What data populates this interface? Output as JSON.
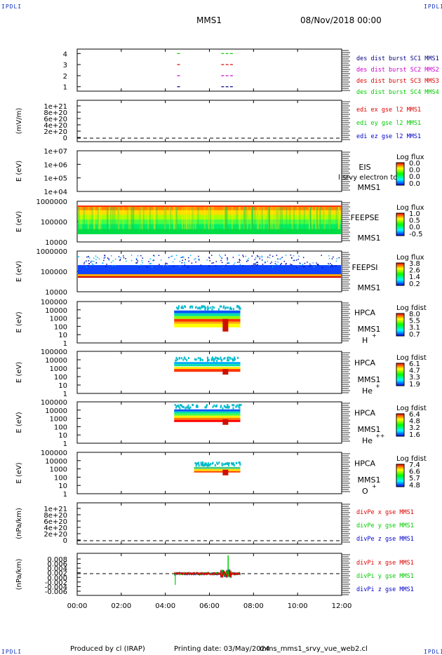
{
  "header": {
    "corner_label": "IPDLI",
    "spacecraft": "MMS1",
    "date": "08/Nov/2018 00:00"
  },
  "footer": {
    "produced_by": "Produced by  cl (IRAP)",
    "printing_date": "Printing date: 03/May/2024",
    "script_name": "mms_mms1_srvy_vue_web2.cl"
  },
  "colors": {
    "red": "#dd0000",
    "green": "#00cc00",
    "blue": "#0000cc",
    "magenta": "#cc00cc",
    "navy": "#000080"
  },
  "chart_data": [
    {
      "type": "scatter",
      "ylabel": "",
      "yticks": [
        "4",
        "3",
        "2",
        "1"
      ],
      "ylim": [
        0.6,
        4.4
      ],
      "legend": [
        {
          "name": "des dist burst SC1 MMS1",
          "color": "navy"
        },
        {
          "name": "des dist burst SC2 MMS2",
          "color": "magenta"
        },
        {
          "name": "des dist burst SC3 MMS3",
          "color": "red"
        },
        {
          "name": "des dist burst SC4 MMS4",
          "color": "green"
        }
      ],
      "segments": [
        {
          "sc": 4,
          "color": "green",
          "x": [
            4.6,
            6.6,
            6.8,
            7.0
          ]
        },
        {
          "sc": 3,
          "color": "red",
          "x": [
            4.6,
            6.6,
            6.8,
            7.0
          ]
        },
        {
          "sc": 2,
          "color": "magenta",
          "x": [
            4.6,
            6.6,
            6.8,
            7.0
          ]
        },
        {
          "sc": 1,
          "color": "navy",
          "x": [
            4.6,
            6.6,
            6.8,
            7.0
          ]
        }
      ]
    },
    {
      "type": "line",
      "ylabel": "(mV/m)",
      "yticks": [
        "1e+21",
        "8e+20",
        "6e+20",
        "4e+20",
        "2e+20",
        "0"
      ],
      "ylim": [
        -0.3,
        1.1
      ],
      "legend": [
        {
          "name": "edi ex gse l2 MMS1",
          "color": "red"
        },
        {
          "name": "edi ey gse l2 MMS1",
          "color": "green"
        },
        {
          "name": "edi ez gse l2 MMS1",
          "color": "blue"
        }
      ]
    },
    {
      "type": "heatmap",
      "ylabel": "E (eV)",
      "yticks": [
        "1e+07",
        "1e+06",
        "1e+05",
        "1e+04"
      ],
      "instrument": "EIS",
      "spacecraft": "MMS1",
      "overlay_text": "l  srvy electron to",
      "colorbar": {
        "title": "Log flux",
        "ticks": [
          "0.0",
          "0.0",
          "0.0",
          "0.0"
        ]
      }
    },
    {
      "type": "heatmap",
      "ylabel": "E (eV)",
      "yticks": [
        "1000000",
        "100000",
        "10000"
      ],
      "instrument": "FEEPSE",
      "spacecraft": "MMS1",
      "colorbar": {
        "title": "Log flux",
        "ticks": [
          "1.0",
          "0.5",
          "0.0",
          "-0.5"
        ]
      }
    },
    {
      "type": "heatmap",
      "ylabel": "E (eV)",
      "yticks": [
        "1000000",
        "100000",
        "10000"
      ],
      "instrument": "FEEPSI",
      "spacecraft": "MMS1",
      "colorbar": {
        "title": "Log flux",
        "ticks": [
          "3.8",
          "2.6",
          "1.4",
          "0.2"
        ]
      }
    },
    {
      "type": "heatmap",
      "ylabel": "E (eV)",
      "yticks": [
        "100000",
        "10000",
        "1000",
        "100",
        "10",
        "1"
      ],
      "instrument": "HPCA",
      "spacecraft": "MMS1",
      "species": "H",
      "species_sup": "+",
      "data_range_hours": [
        4.4,
        7.4
      ],
      "colorbar": {
        "title": "Log fdist",
        "ticks": [
          "8.0",
          "5.5",
          "3.1",
          "0.7"
        ]
      }
    },
    {
      "type": "heatmap",
      "ylabel": "E (eV)",
      "yticks": [
        "100000",
        "10000",
        "1000",
        "100",
        "10",
        "1"
      ],
      "instrument": "HPCA",
      "spacecraft": "MMS1",
      "species": "He",
      "species_sup": "+",
      "data_range_hours": [
        4.4,
        7.4
      ],
      "colorbar": {
        "title": "Log fdist",
        "ticks": [
          "6.1",
          "4.7",
          "3.3",
          "1.9"
        ]
      }
    },
    {
      "type": "heatmap",
      "ylabel": "E (eV)",
      "yticks": [
        "100000",
        "10000",
        "1000",
        "100",
        "10",
        "1"
      ],
      "instrument": "HPCA",
      "spacecraft": "MMS1",
      "species": "He",
      "species_sup": "++",
      "data_range_hours": [
        4.4,
        7.4
      ],
      "colorbar": {
        "title": "Log fdist",
        "ticks": [
          "6.4",
          "4.8",
          "3.2",
          "1.6"
        ]
      }
    },
    {
      "type": "heatmap",
      "ylabel": "E (eV)",
      "yticks": [
        "100000",
        "10000",
        "1000",
        "100",
        "10",
        "1"
      ],
      "instrument": "HPCA",
      "spacecraft": "MMS1",
      "species": "O",
      "species_sup": "+",
      "data_range_hours": [
        4.4,
        7.4
      ],
      "colorbar": {
        "title": "Log fdist",
        "ticks": [
          "7.4",
          "6.6",
          "5.7",
          "4.8"
        ]
      }
    },
    {
      "type": "line",
      "ylabel": "(nPa/km)",
      "yticks": [
        "1e+21",
        "8e+20",
        "6e+20",
        "4e+20",
        "2e+20",
        "0"
      ],
      "ylim": [
        -0.05,
        1.1
      ],
      "legend": [
        {
          "name": "divPe x gse MMS1",
          "color": "red"
        },
        {
          "name": "divPe y gse MMS1",
          "color": "green"
        },
        {
          "name": "divPe z gse MMS1",
          "color": "blue"
        }
      ]
    },
    {
      "type": "line",
      "ylabel": "(nPa/km)",
      "yticks": [
        "0.008",
        "0.006",
        "0.004",
        "0.002",
        "0.000",
        "-0.002",
        "-0.004",
        "-0.006"
      ],
      "ylim": [
        -0.0065,
        0.0085
      ],
      "data_range_hours": [
        4.4,
        7.4
      ],
      "legend": [
        {
          "name": "divPi x gse MMS1",
          "color": "red"
        },
        {
          "name": "divPi y gse MMS1",
          "color": "green"
        },
        {
          "name": "divPi z gse MMS1",
          "color": "blue"
        }
      ]
    }
  ],
  "xaxis": {
    "ticks": [
      "00:00",
      "02:00",
      "04:00",
      "06:00",
      "08:00",
      "10:00",
      "12:00"
    ],
    "xlim": [
      0,
      12
    ]
  }
}
